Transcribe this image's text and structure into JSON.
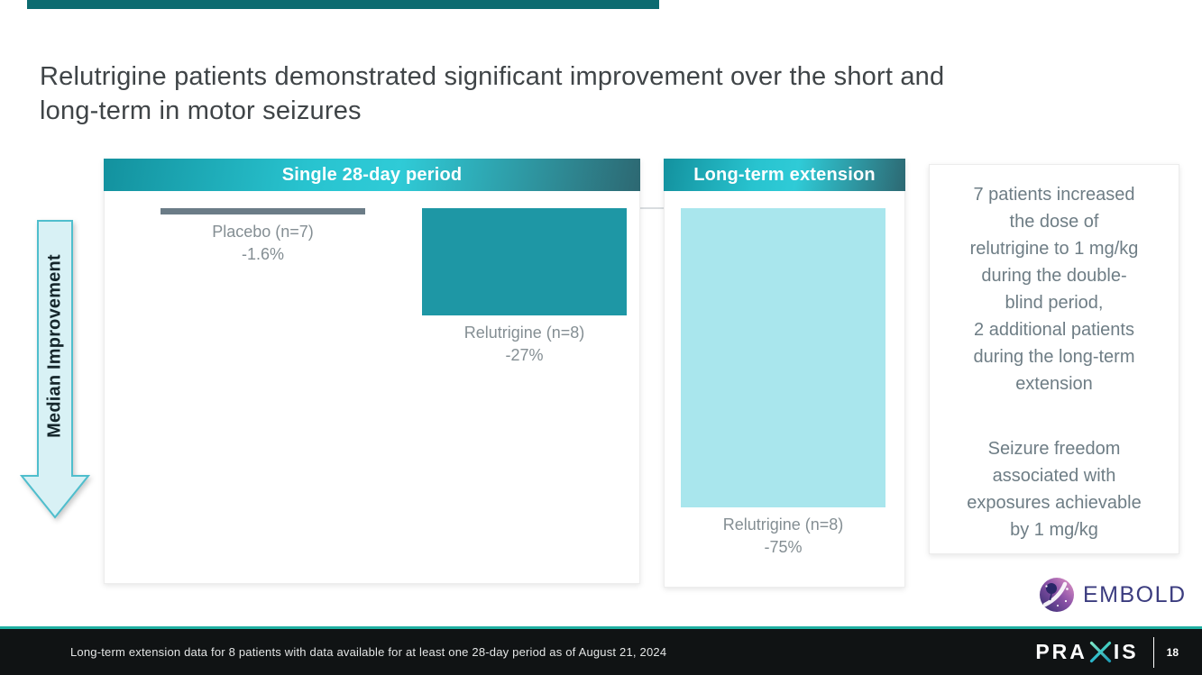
{
  "colors": {
    "top_accent_teal": "#0c6b70",
    "header_gradient_start": "#13919e",
    "header_gradient_mid": "#2fcbd7",
    "header_gradient_end": "#2d6872",
    "bar_placebo": "#6b7c87",
    "bar_relutrigine_28day": "#1e97a5",
    "bar_relutrigine_longterm": "#a9e6ed",
    "arrow_fill": "#d8f1f5",
    "arrow_border": "#4fbecd",
    "footer_bg": "#101314",
    "footer_accent": "#1fb0a2",
    "embold_purple": "#3b3c7f"
  },
  "title": {
    "lines": [
      "Relutrigine patients demonstrated significant improvement over the short and",
      "long-term in motor seizures"
    ]
  },
  "chart_data": {
    "type": "bar",
    "ylabel": "Median Improvement",
    "ylim": [
      -90,
      0
    ],
    "y_ticks": [
      "0%",
      "-10%",
      "-20%",
      "-30%",
      "-40%",
      "-50%",
      "-60%",
      "-70%",
      "-80%",
      "-90%"
    ],
    "grid": "zero-baseline-only",
    "legend": "none",
    "panels": [
      {
        "header": "Single 28-day period",
        "bars": [
          {
            "group": "Placebo",
            "label": "Placebo (n=7)",
            "value_pct": -1.6,
            "value_label": "-1.6%",
            "color": "#6b7c87"
          },
          {
            "group": "Relutrigine",
            "label": "Relutrigine (n=8)",
            "value_pct": -27,
            "value_label": "-27%",
            "color": "#1e97a5"
          }
        ]
      },
      {
        "header": "Long-term extension",
        "bars": [
          {
            "group": "Relutrigine",
            "label": "Relutrigine (n=8)",
            "value_pct": -75,
            "value_label": "-75%",
            "color": "#a9e6ed"
          }
        ]
      }
    ]
  },
  "info_panel": {
    "para1_lines": [
      "7 patients increased",
      "the dose of",
      "relutrigine to 1 mg/kg",
      "during the double-",
      "blind period,",
      "2 additional patients",
      "during the long-term",
      "extension"
    ],
    "para2_lines": [
      "Seizure freedom",
      "associated with",
      "exposures achievable",
      "by 1 mg/kg"
    ]
  },
  "footer": {
    "footnote": "Long-term extension data for 8 patients with data available for at least one 28-day period as of August 21, 2024",
    "page_number": "18"
  },
  "logos": {
    "embold_text": "EMBOLD",
    "praxis_part1": "PRA",
    "praxis_part2": "IS"
  }
}
